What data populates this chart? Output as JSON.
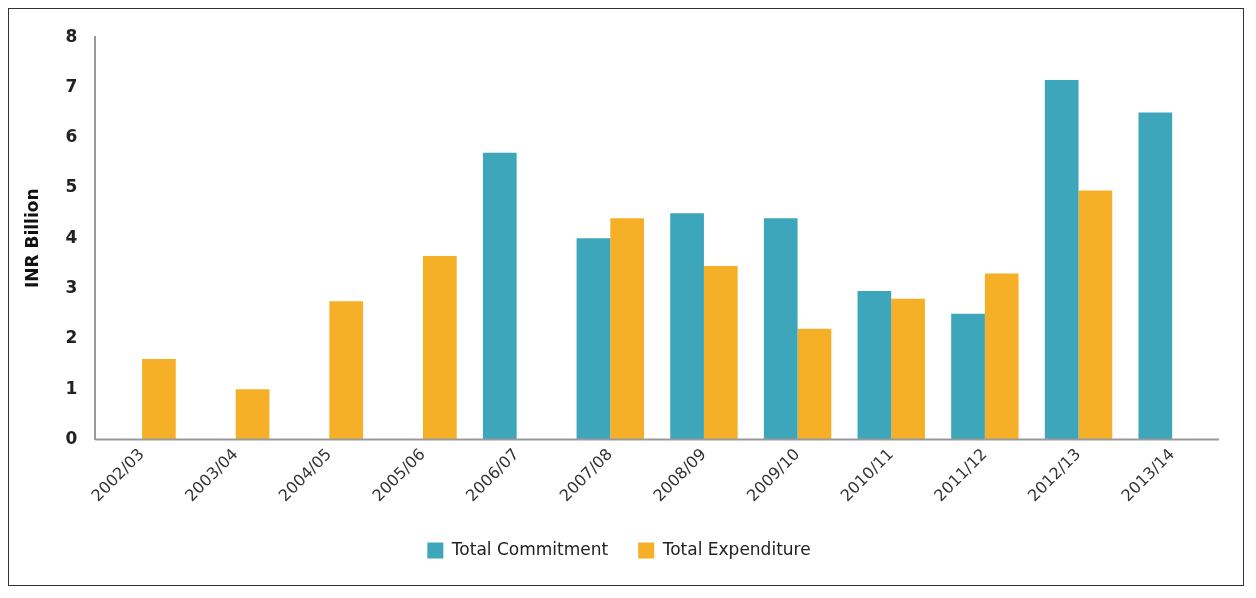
{
  "chart_data": {
    "type": "bar",
    "ylabel": "INR Billion",
    "categories": [
      "2002/03",
      "2003/04",
      "2004/05",
      "2005/06",
      "2006/07",
      "2007/08",
      "2008/09",
      "2009/10",
      "2010/11",
      "2011/12",
      "2012/13",
      "2013/14"
    ],
    "series": [
      {
        "name": "Total Commitment",
        "color": "#3ea6bb",
        "values": [
          null,
          null,
          null,
          null,
          5.7,
          4.0,
          4.5,
          4.4,
          2.95,
          2.5,
          7.15,
          6.5
        ]
      },
      {
        "name": "Total Expenditure",
        "color": "#f5b027",
        "values": [
          1.6,
          1.0,
          2.75,
          3.65,
          null,
          4.4,
          3.45,
          2.2,
          2.8,
          3.3,
          4.95,
          null
        ]
      }
    ],
    "ylim": [
      0,
      8
    ],
    "yticks": [
      0,
      1,
      2,
      3,
      4,
      5,
      6,
      7,
      8
    ],
    "grid": false,
    "legend": "bottom"
  }
}
